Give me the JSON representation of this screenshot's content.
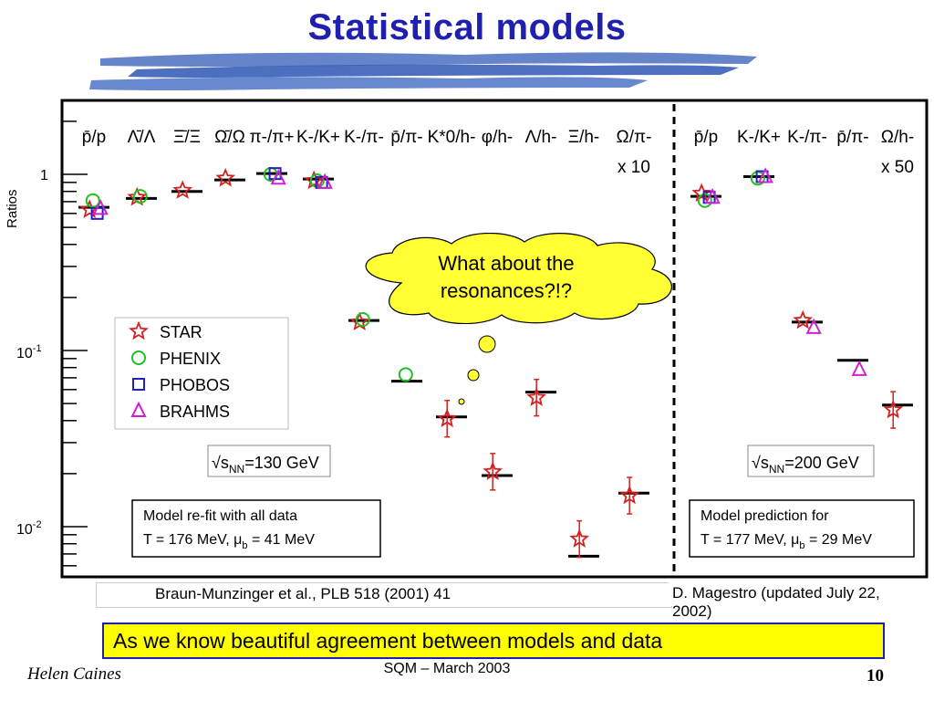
{
  "slide": {
    "title": "Statistical models",
    "banner": "As we know beautiful agreement between models and data",
    "footer_author": "Helen Caines",
    "footer_center": "SQM  – March 2003",
    "page_number": "10",
    "callout_line1": "What about the",
    "callout_line2": "resonances?!?"
  },
  "colors": {
    "title": "#1f1fb0",
    "banner_bg": "#ffff00",
    "callout_bg": "#ffff33",
    "STAR": "#d42020",
    "PHENIX": "#20c020",
    "PHOBOS": "#2020c0",
    "BRAHMS": "#d020d0"
  },
  "chart_data": {
    "type": "scatter",
    "ylabel": "Ratios",
    "yscale": "log",
    "ylim": [
      0.006,
      3
    ],
    "yticks": [
      {
        "value": 1,
        "label": "1"
      },
      {
        "value": 0.1,
        "label": "10-1"
      },
      {
        "value": 0.01,
        "label": "10-2"
      }
    ],
    "legend": [
      "STAR",
      "PHENIX",
      "PHOBOS",
      "BRAHMS"
    ],
    "panels": [
      {
        "energy_label": "√sNN=130 GeV",
        "model_box": [
          "Model re-fit with all data",
          "T = 176 MeV,    μb = 41 MeV"
        ],
        "reference": "Braun-Munzinger et al., PLB 518 (2001) 41",
        "categories": [
          "p̄/p",
          "Λ̄/Λ",
          "Ξ̄/Ξ",
          "Ω̄/Ω",
          "π-/π+",
          "K-/K+",
          "K-/π-",
          "p̄/π-",
          "K*0/h-",
          "φ/h-",
          "Λ/h-",
          "Ξ/h-",
          "Ω/π- x 10"
        ],
        "model": [
          0.65,
          0.73,
          0.8,
          0.93,
          1.01,
          0.94,
          0.148,
          0.067,
          0.042,
          0.0195,
          0.058,
          0.0068,
          0.0155
        ],
        "series": [
          {
            "name": "STAR",
            "values": [
              0.63,
              0.74,
              0.81,
              0.95,
              null,
              0.92,
              0.145,
              null,
              0.041,
              0.0205,
              0.054,
              0.0085,
              0.015
            ]
          },
          {
            "name": "PHENIX",
            "values": [
              0.71,
              0.75,
              null,
              null,
              1.0,
              0.92,
              0.15,
              0.073,
              null,
              null,
              null,
              null,
              null
            ]
          },
          {
            "name": "PHOBOS",
            "values": [
              0.6,
              null,
              null,
              null,
              1.01,
              0.9,
              null,
              null,
              null,
              null,
              null,
              null,
              null
            ]
          },
          {
            "name": "BRAHMS",
            "values": [
              0.64,
              null,
              null,
              null,
              0.95,
              0.9,
              null,
              null,
              null,
              null,
              null,
              null,
              null
            ]
          }
        ]
      },
      {
        "energy_label": "√sNN=200 GeV",
        "model_box": [
          "Model prediction for",
          "T = 177 MeV,    μb = 29 MeV"
        ],
        "reference": "D. Magestro (updated July 22, 2002)",
        "categories": [
          "p̄/p",
          "K-/K+",
          "K-/π-",
          "p̄/π-",
          "Ω/h- x 50"
        ],
        "model": [
          0.75,
          0.97,
          0.145,
          0.088,
          0.049
        ],
        "series": [
          {
            "name": "STAR",
            "values": [
              0.78,
              null,
              0.148,
              null,
              0.046
            ]
          },
          {
            "name": "PHENIX",
            "values": [
              0.71,
              0.95,
              null,
              null,
              null
            ]
          },
          {
            "name": "PHOBOS",
            "values": [
              0.74,
              0.97,
              null,
              null,
              null
            ]
          },
          {
            "name": "BRAHMS",
            "values": [
              0.74,
              0.97,
              0.135,
              0.078,
              null
            ]
          }
        ]
      }
    ]
  }
}
